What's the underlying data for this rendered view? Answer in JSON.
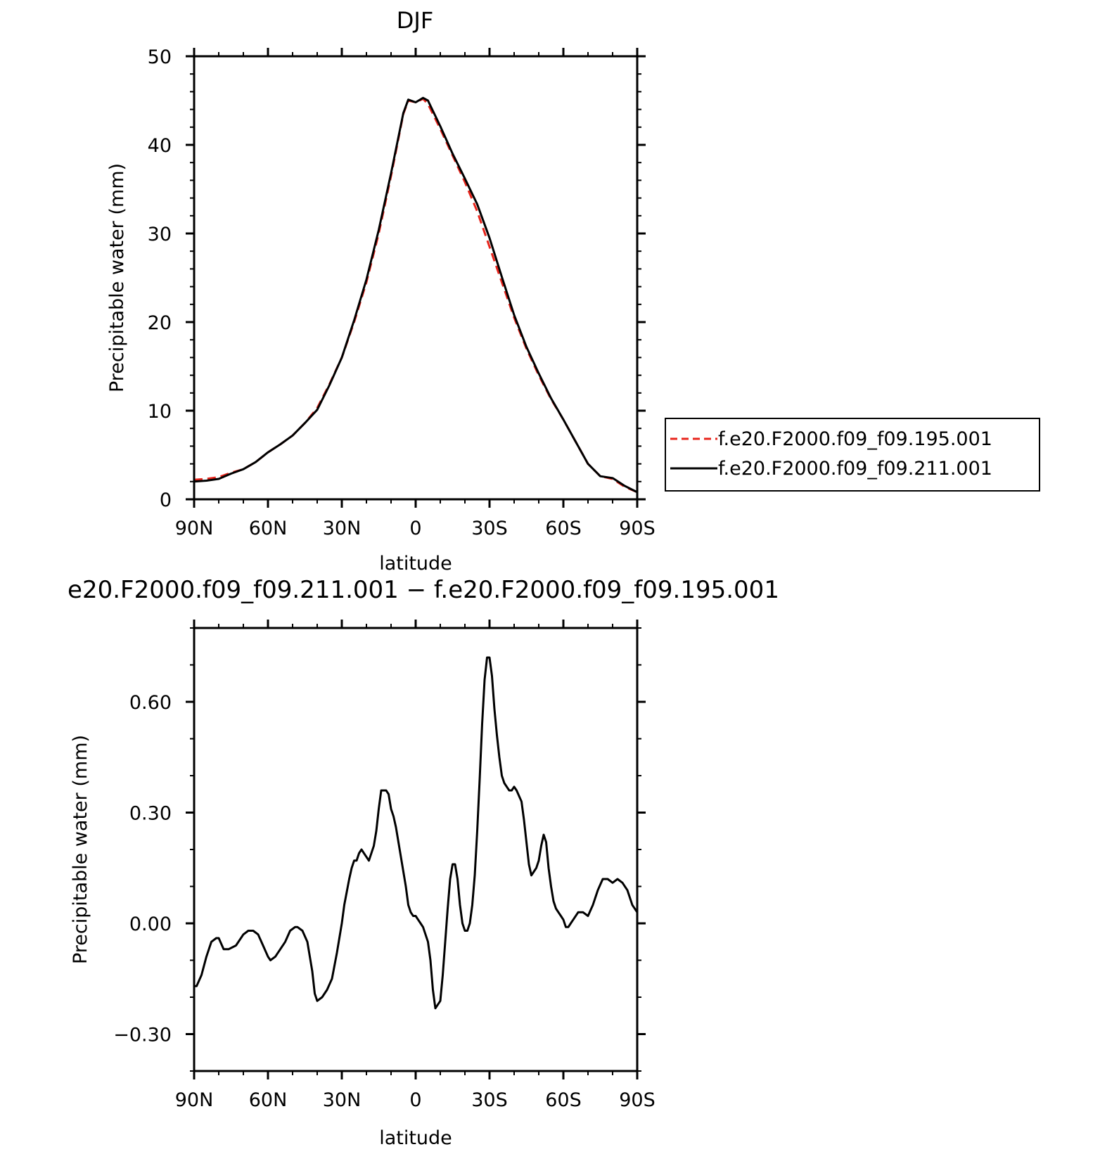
{
  "chart_data": [
    {
      "type": "line",
      "title": "DJF",
      "xlabel": "latitude",
      "ylabel": "Precipitable water (mm)",
      "xlim": [
        -90,
        90
      ],
      "ylim": [
        0,
        50
      ],
      "x_ticks": [
        -90,
        -60,
        -30,
        0,
        30,
        60,
        90
      ],
      "x_tick_labels": [
        "90N",
        "60N",
        "30N",
        "0",
        "30S",
        "60S",
        "90S"
      ],
      "y_ticks": [
        0,
        10,
        20,
        30,
        40,
        50
      ],
      "y_tick_labels": [
        "0",
        "10",
        "20",
        "30",
        "40",
        "50"
      ],
      "x": [
        -90,
        -85,
        -80,
        -75,
        -70,
        -65,
        -60,
        -55,
        -50,
        -45,
        -40,
        -35,
        -30,
        -25,
        -20,
        -15,
        -10,
        -5,
        -3,
        0,
        3,
        5,
        10,
        15,
        20,
        25,
        30,
        35,
        40,
        45,
        50,
        55,
        60,
        65,
        70,
        75,
        80,
        85,
        90
      ],
      "series": [
        {
          "name": "f.e20.F2000.f09_f09.195.001",
          "color": "#e8251c",
          "dash": "dashed",
          "values": [
            2.2,
            2.3,
            2.5,
            3.0,
            3.4,
            4.2,
            5.3,
            6.2,
            7.2,
            8.6,
            10.3,
            13.0,
            16.0,
            20.0,
            24.5,
            30.0,
            36.5,
            43.5,
            45.0,
            44.8,
            45.2,
            44.6,
            41.8,
            38.8,
            35.8,
            32.5,
            28.5,
            24.5,
            20.5,
            17.0,
            14.0,
            11.3,
            9.0,
            6.5,
            4.0,
            2.6,
            2.3,
            1.4,
            0.8
          ]
        },
        {
          "name": "f.e20.F2000.f09_f09.211.001",
          "color": "#000000",
          "dash": "solid",
          "values": [
            2.0,
            2.1,
            2.3,
            2.9,
            3.4,
            4.2,
            5.3,
            6.2,
            7.2,
            8.6,
            10.1,
            12.9,
            16.0,
            20.2,
            24.8,
            30.4,
            36.8,
            43.6,
            45.1,
            44.8,
            45.3,
            45.0,
            42.1,
            39.0,
            36.2,
            33.3,
            29.5,
            25.1,
            20.8,
            17.2,
            14.2,
            11.4,
            9.0,
            6.5,
            4.0,
            2.6,
            2.4,
            1.5,
            0.8
          ]
        }
      ],
      "legend": "right"
    },
    {
      "type": "line",
      "title": "e20.F2000.f09_f09.211.001 − f.e20.F2000.f09_f09.195.001",
      "xlabel": "latitude",
      "ylabel": "Precipitable water (mm)",
      "xlim": [
        -90,
        90
      ],
      "ylim": [
        -0.4,
        0.8
      ],
      "x_ticks": [
        -90,
        -60,
        -30,
        0,
        30,
        60,
        90
      ],
      "x_tick_labels": [
        "90N",
        "60N",
        "30N",
        "0",
        "30S",
        "60S",
        "90S"
      ],
      "y_ticks": [
        -0.3,
        0.0,
        0.3,
        0.6
      ],
      "y_tick_labels": [
        "−0.30",
        "0.00",
        "0.30",
        "0.60"
      ],
      "x": [
        -90,
        -89,
        -87,
        -85,
        -83,
        -81,
        -80,
        -78,
        -76,
        -73,
        -70,
        -68,
        -66,
        -64,
        -62,
        -60,
        -59,
        -57,
        -55,
        -53,
        -51,
        -49,
        -48,
        -46,
        -44,
        -42,
        -41,
        -40,
        -38,
        -36,
        -34,
        -32,
        -30,
        -29,
        -27,
        -26,
        -25,
        -24,
        -23,
        -22,
        -21,
        -19,
        -17,
        -16,
        -15,
        -14,
        -13,
        -12,
        -11,
        -10,
        -9,
        -8,
        -7,
        -6,
        -5,
        -4,
        -3,
        -2,
        -1,
        0,
        1,
        2,
        3,
        4,
        5,
        6,
        7,
        8,
        10,
        11,
        12,
        13,
        14,
        15,
        16,
        17,
        18,
        19,
        20,
        21,
        22,
        23,
        24,
        25,
        26,
        27,
        28,
        29,
        30,
        31,
        32,
        33,
        34,
        35,
        36,
        37,
        38,
        39,
        40,
        41,
        43,
        44,
        45,
        46,
        47,
        48,
        49,
        50,
        51,
        52,
        53,
        54,
        55,
        56,
        57,
        58,
        59,
        60,
        61,
        62,
        63,
        64,
        66,
        68,
        70,
        72,
        74,
        76,
        78,
        80,
        82,
        84,
        86,
        88,
        90
      ],
      "series": [
        {
          "name": "",
          "color": "#000000",
          "dash": "solid",
          "values": [
            -0.17,
            -0.17,
            -0.14,
            -0.09,
            -0.05,
            -0.04,
            -0.04,
            -0.07,
            -0.07,
            -0.06,
            -0.03,
            -0.02,
            -0.02,
            -0.03,
            -0.06,
            -0.09,
            -0.1,
            -0.09,
            -0.07,
            -0.05,
            -0.02,
            -0.01,
            -0.01,
            -0.02,
            -0.05,
            -0.13,
            -0.19,
            -0.21,
            -0.2,
            -0.18,
            -0.15,
            -0.08,
            0.0,
            0.05,
            0.12,
            0.15,
            0.17,
            0.17,
            0.19,
            0.2,
            0.19,
            0.17,
            0.21,
            0.25,
            0.31,
            0.36,
            0.36,
            0.36,
            0.35,
            0.31,
            0.29,
            0.26,
            0.22,
            0.18,
            0.14,
            0.1,
            0.05,
            0.03,
            0.02,
            0.02,
            0.01,
            0.0,
            -0.01,
            -0.03,
            -0.05,
            -0.1,
            -0.18,
            -0.23,
            -0.21,
            -0.14,
            -0.05,
            0.04,
            0.12,
            0.16,
            0.16,
            0.12,
            0.05,
            0.0,
            -0.02,
            -0.02,
            0.0,
            0.05,
            0.13,
            0.25,
            0.39,
            0.54,
            0.66,
            0.72,
            0.72,
            0.67,
            0.58,
            0.51,
            0.45,
            0.4,
            0.38,
            0.37,
            0.36,
            0.36,
            0.37,
            0.36,
            0.33,
            0.28,
            0.22,
            0.16,
            0.13,
            0.14,
            0.15,
            0.17,
            0.21,
            0.24,
            0.22,
            0.15,
            0.1,
            0.06,
            0.04,
            0.03,
            0.02,
            0.01,
            -0.01,
            -0.01,
            0.0,
            0.01,
            0.03,
            0.03,
            0.02,
            0.05,
            0.09,
            0.12,
            0.12,
            0.11,
            0.12,
            0.11,
            0.09,
            0.05,
            0.03
          ]
        }
      ]
    }
  ]
}
